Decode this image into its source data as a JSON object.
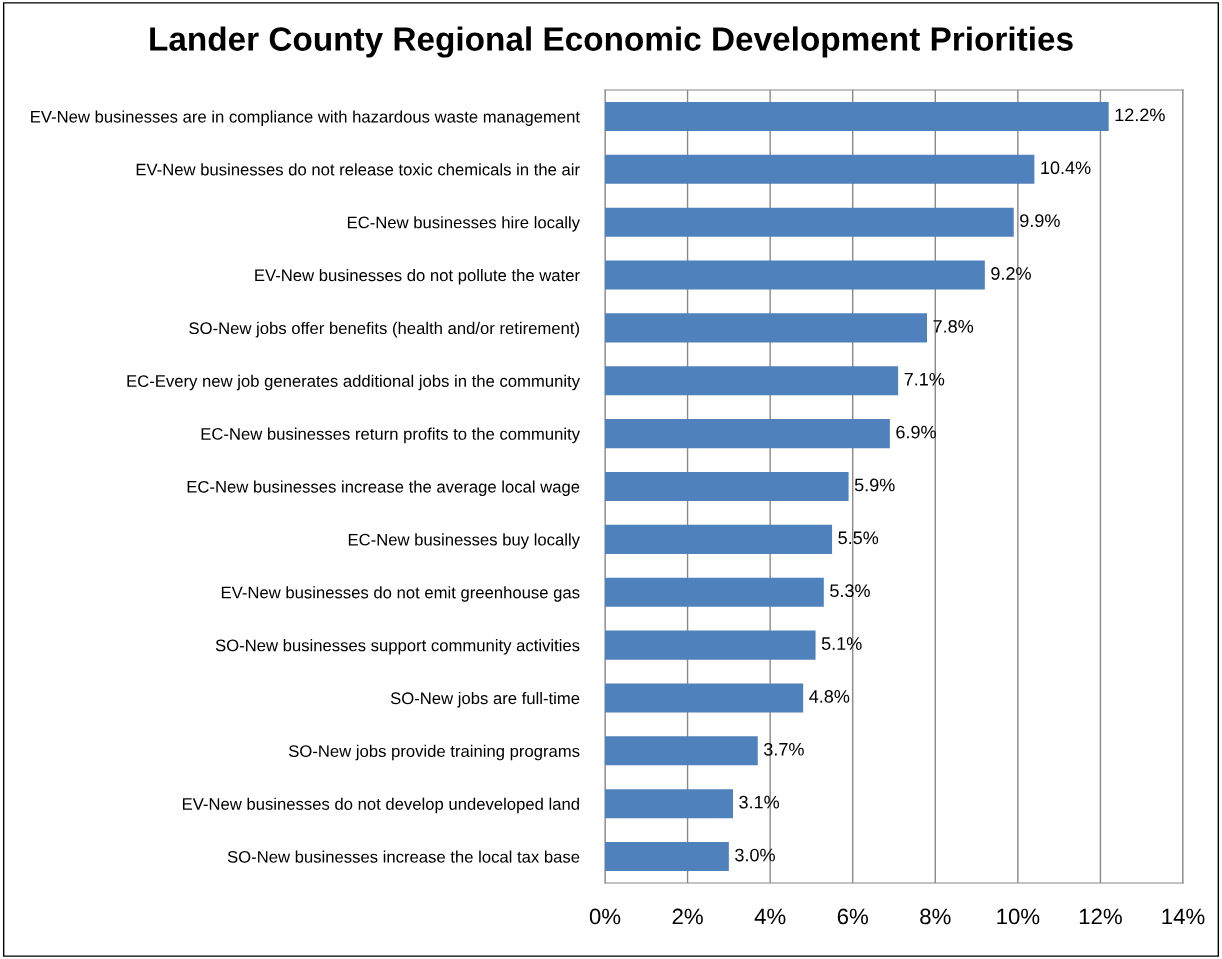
{
  "chart_data": {
    "type": "bar",
    "orientation": "horizontal",
    "title": "Lander County Regional Economic Development Priorities",
    "categories": [
      "EV-New businesses are in compliance with hazardous waste management",
      "EV-New businesses do not release toxic chemicals in the air",
      "EC-New businesses hire locally",
      "EV-New businesses do not pollute the water",
      "SO-New jobs offer benefits (health and/or retirement)",
      "EC-Every new job generates additional jobs in the community",
      "EC-New businesses return profits to the community",
      "EC-New businesses increase the average local wage",
      "EC-New businesses buy locally",
      "EV-New businesses do not emit greenhouse gas",
      "SO-New businesses support community activities",
      "SO-New jobs are full-time",
      "SO-New jobs provide training programs",
      "EV-New businesses do not develop undeveloped land",
      "SO-New businesses increase the local tax base"
    ],
    "values": [
      12.2,
      10.4,
      9.9,
      9.2,
      7.8,
      7.1,
      6.9,
      5.9,
      5.5,
      5.3,
      5.1,
      4.8,
      3.7,
      3.1,
      3.0
    ],
    "value_labels": [
      "12.2%",
      "10.4%",
      "9.9%",
      "9.2%",
      "7.8%",
      "7.1%",
      "6.9%",
      "5.9%",
      "5.5%",
      "5.3%",
      "5.1%",
      "4.8%",
      "3.7%",
      "3.1%",
      "3.0%"
    ],
    "color": "#4f81bd",
    "xlim": [
      0,
      14
    ],
    "xticks": [
      {
        "value": 0,
        "label": "0%"
      },
      {
        "value": 2,
        "label": "2%"
      },
      {
        "value": 4,
        "label": "4%"
      },
      {
        "value": 6,
        "label": "6%"
      },
      {
        "value": 8,
        "label": "8%"
      },
      {
        "value": 10,
        "label": "10%"
      },
      {
        "value": 12,
        "label": "12%"
      },
      {
        "value": 14,
        "label": "14%"
      }
    ],
    "grid": "x"
  }
}
